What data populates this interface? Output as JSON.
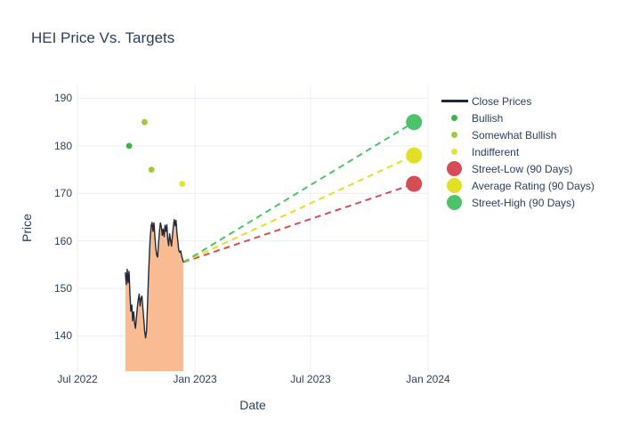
{
  "title": "HEI Price Vs. Targets",
  "colors": {
    "text": "#2a3f5f",
    "grid": "#e9eef7",
    "close_line": "#20293a",
    "close_fill": "#f9bc92",
    "bullish": "#3bb54a",
    "somewhat_bullish": "#9bcc3b",
    "indifferent": "#e7e234",
    "street_low": "#d64c55",
    "average_rating": "#e3df27",
    "street_high": "#4cc368"
  },
  "chart_data": {
    "type": "line",
    "title": "HEI Price Vs. Targets",
    "xlabel": "Date",
    "ylabel": "Price",
    "grid": true,
    "legend_position": "right",
    "xlim": [
      "2022-07-01",
      "2024-01-01"
    ],
    "ylim": [
      132.6,
      192.9
    ],
    "yticks": [
      140,
      150,
      160,
      170,
      180,
      190
    ],
    "xtick_dates": [
      "2022-07-01",
      "2023-01-01",
      "2023-07-01",
      "2024-01-01"
    ],
    "xtick_labels": [
      "Jul 2022",
      "Jan 2023",
      "Jul 2023",
      "Jan 2024"
    ],
    "series": [
      {
        "name": "Close Prices",
        "type": "line+area_fill",
        "date_start": "2022-09-14",
        "date_end": "2022-12-14",
        "prices": [
          153.4,
          150.8,
          154.0,
          151.2,
          153.6,
          148.9,
          145.2,
          146.5,
          143.2,
          145.1,
          142.8,
          141.6,
          143.9,
          146.0,
          147.6,
          148.8,
          146.3,
          147.9,
          148.4,
          145.9,
          143.4,
          140.9,
          139.6,
          141.2,
          146.3,
          151.8,
          156.9,
          160.8,
          163.2,
          163.9,
          162.0,
          163.8,
          161.0,
          158.5,
          157.0,
          156.6,
          159.5,
          162.0,
          163.8,
          163.0,
          161.2,
          162.5,
          160.9,
          163.3,
          162.0,
          163.4,
          160.3,
          159.0,
          161.5,
          160.2,
          158.9,
          161.0,
          163.0,
          164.5,
          163.2,
          164.3,
          161.5,
          159.8,
          158.0,
          157.6,
          157.9,
          156.8,
          156.2,
          155.5
        ]
      }
    ],
    "ratings": [
      {
        "label": "Bullish",
        "date": "2022-09-20",
        "price": 180,
        "color_key": "bullish"
      },
      {
        "label": "Somewhat Bullish",
        "date": "2022-10-14",
        "price": 185,
        "color_key": "somewhat_bullish"
      },
      {
        "label": "Somewhat Bullish",
        "date": "2022-10-25",
        "price": 175,
        "color_key": "somewhat_bullish"
      },
      {
        "label": "Indifferent",
        "date": "2022-12-12",
        "price": 172,
        "color_key": "indifferent"
      }
    ],
    "targets": {
      "date": "2023-12-10",
      "projection_from": {
        "date": "2022-12-14",
        "price": 155.5
      },
      "points": [
        {
          "name": "Street-Low (90 Days)",
          "price": 172,
          "color_key": "street_low"
        },
        {
          "name": "Average Rating (90 Days)",
          "price": 178,
          "color_key": "average_rating"
        },
        {
          "name": "Street-High (90 Days)",
          "price": 185,
          "color_key": "street_high"
        }
      ]
    }
  },
  "legend": {
    "items": [
      {
        "label": "Close Prices",
        "marker": "line",
        "color_key": "close_line"
      },
      {
        "label": "Bullish",
        "marker": "dot",
        "color_key": "bullish"
      },
      {
        "label": "Somewhat Bullish",
        "marker": "dot",
        "color_key": "somewhat_bullish"
      },
      {
        "label": "Indifferent",
        "marker": "dot",
        "color_key": "indifferent"
      },
      {
        "label": "Street-Low (90 Days)",
        "marker": "big-dot",
        "color_key": "street_low"
      },
      {
        "label": "Average Rating (90 Days)",
        "marker": "big-dot",
        "color_key": "average_rating"
      },
      {
        "label": "Street-High (90 Days)",
        "marker": "big-dot",
        "color_key": "street_high"
      }
    ]
  }
}
